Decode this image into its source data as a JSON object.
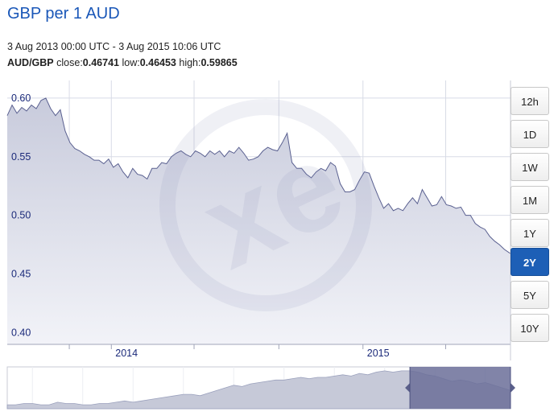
{
  "page": {
    "title": "GBP per 1 AUD",
    "date_range": "3 Aug 2013 00:00 UTC - 3 Aug 2015 10:06 UTC",
    "stats": {
      "pair": "AUD/GBP",
      "close_label": "close:",
      "close": "0.46741",
      "low_label": "low:",
      "low": "0.46453",
      "high_label": "high:",
      "high": "0.59865"
    }
  },
  "range_buttons": [
    {
      "label": "12h",
      "active": false
    },
    {
      "label": "1D",
      "active": false
    },
    {
      "label": "1W",
      "active": false
    },
    {
      "label": "1M",
      "active": false
    },
    {
      "label": "1Y",
      "active": false
    },
    {
      "label": "2Y",
      "active": true
    },
    {
      "label": "5Y",
      "active": false
    },
    {
      "label": "10Y",
      "active": false
    }
  ],
  "colors": {
    "line": "#5a6090",
    "fill_top": "#c8cbdc",
    "fill_bottom": "#f2f3f8",
    "tick_label": "#1b2a7a",
    "button_active": "#1d5fb6",
    "navigator_fill": "#c6c9d8",
    "navigator_selected": "#6b6f99"
  },
  "chart_data": {
    "type": "area",
    "title": "GBP per 1 AUD",
    "xlabel": "",
    "ylabel": "",
    "x_range": [
      "2013-08-03",
      "2015-08-03"
    ],
    "ylim": [
      0.39,
      0.615
    ],
    "y_ticks": [
      0.6,
      0.55,
      0.5,
      0.45,
      0.4
    ],
    "y_tick_labels": [
      "0.60",
      "0.55",
      "0.50",
      "0.45",
      "0.40"
    ],
    "x_tick_dates": [
      "2013-11-01",
      "2014-01-01",
      "2014-05-01",
      "2014-09-01",
      "2015-01-01",
      "2015-05-01"
    ],
    "x_tick_labels": [
      {
        "date": "2014-01-01",
        "label": "2014"
      },
      {
        "date": "2015-01-01",
        "label": "2015"
      }
    ],
    "grid": true,
    "series": [
      {
        "dates": [
          "2013-08-03",
          "2013-08-10",
          "2013-08-17",
          "2013-08-24",
          "2013-08-31",
          "2013-09-07",
          "2013-09-14",
          "2013-09-21",
          "2013-09-28",
          "2013-10-05",
          "2013-10-12",
          "2013-10-19",
          "2013-10-26",
          "2013-11-02",
          "2013-11-09",
          "2013-11-16",
          "2013-11-23",
          "2013-11-30",
          "2013-12-07",
          "2013-12-14",
          "2013-12-21",
          "2013-12-28",
          "2014-01-04",
          "2014-01-11",
          "2014-01-18",
          "2014-01-25",
          "2014-02-01",
          "2014-02-08",
          "2014-02-15",
          "2014-02-22",
          "2014-03-01",
          "2014-03-08",
          "2014-03-15",
          "2014-03-22",
          "2014-03-29",
          "2014-04-05",
          "2014-04-12",
          "2014-04-19",
          "2014-04-26",
          "2014-05-03",
          "2014-05-10",
          "2014-05-17",
          "2014-05-24",
          "2014-05-31",
          "2014-06-07",
          "2014-06-14",
          "2014-06-21",
          "2014-06-28",
          "2014-07-05",
          "2014-07-12",
          "2014-07-19",
          "2014-07-26",
          "2014-08-02",
          "2014-08-09",
          "2014-08-16",
          "2014-08-23",
          "2014-08-30",
          "2014-09-06",
          "2014-09-13",
          "2014-09-20",
          "2014-09-27",
          "2014-10-04",
          "2014-10-11",
          "2014-10-18",
          "2014-10-25",
          "2014-11-01",
          "2014-11-08",
          "2014-11-15",
          "2014-11-22",
          "2014-11-29",
          "2014-12-06",
          "2014-12-13",
          "2014-12-20",
          "2014-12-27",
          "2015-01-03",
          "2015-01-10",
          "2015-01-17",
          "2015-01-24",
          "2015-01-31",
          "2015-02-07",
          "2015-02-14",
          "2015-02-21",
          "2015-02-28",
          "2015-03-07",
          "2015-03-14",
          "2015-03-21",
          "2015-03-28",
          "2015-04-04",
          "2015-04-11",
          "2015-04-18",
          "2015-04-25",
          "2015-05-02",
          "2015-05-09",
          "2015-05-16",
          "2015-05-23",
          "2015-05-30",
          "2015-06-06",
          "2015-06-13",
          "2015-06-20",
          "2015-06-27",
          "2015-07-04",
          "2015-07-11",
          "2015-07-18",
          "2015-07-25",
          "2015-08-03"
        ],
        "values": [
          0.585,
          0.594,
          0.587,
          0.592,
          0.589,
          0.594,
          0.591,
          0.598,
          0.6,
          0.591,
          0.585,
          0.59,
          0.572,
          0.562,
          0.557,
          0.555,
          0.552,
          0.55,
          0.547,
          0.547,
          0.544,
          0.548,
          0.541,
          0.544,
          0.537,
          0.532,
          0.54,
          0.535,
          0.534,
          0.531,
          0.54,
          0.54,
          0.545,
          0.544,
          0.55,
          0.553,
          0.555,
          0.552,
          0.55,
          0.555,
          0.553,
          0.55,
          0.555,
          0.552,
          0.555,
          0.55,
          0.555,
          0.553,
          0.558,
          0.553,
          0.547,
          0.548,
          0.55,
          0.555,
          0.558,
          0.556,
          0.555,
          0.562,
          0.57,
          0.545,
          0.54,
          0.54,
          0.535,
          0.532,
          0.537,
          0.54,
          0.538,
          0.545,
          0.542,
          0.527,
          0.52,
          0.52,
          0.522,
          0.53,
          0.537,
          0.536,
          0.525,
          0.515,
          0.506,
          0.51,
          0.504,
          0.506,
          0.504,
          0.51,
          0.515,
          0.51,
          0.522,
          0.515,
          0.508,
          0.509,
          0.516,
          0.509,
          0.508,
          0.506,
          0.507,
          0.5,
          0.5,
          0.493,
          0.49,
          0.488,
          0.482,
          0.478,
          0.475,
          0.471,
          0.4674
        ]
      }
    ],
    "close": 0.46741,
    "low": 0.46453,
    "high": 0.59865,
    "navigator": {
      "x_range": [
        "2005-08-03",
        "2015-08-03"
      ],
      "selected_range": [
        "2013-08-03",
        "2015-08-03"
      ],
      "values": [
        0.37,
        0.37,
        0.38,
        0.38,
        0.37,
        0.37,
        0.39,
        0.38,
        0.38,
        0.37,
        0.37,
        0.38,
        0.38,
        0.39,
        0.4,
        0.39,
        0.4,
        0.41,
        0.42,
        0.43,
        0.44,
        0.45,
        0.45,
        0.44,
        0.46,
        0.48,
        0.5,
        0.52,
        0.51,
        0.53,
        0.54,
        0.55,
        0.56,
        0.56,
        0.57,
        0.58,
        0.57,
        0.58,
        0.58,
        0.59,
        0.6,
        0.59,
        0.61,
        0.6,
        0.62,
        0.63,
        0.62,
        0.63,
        0.63,
        0.62,
        0.6,
        0.59,
        0.57,
        0.55,
        0.56,
        0.55,
        0.53,
        0.54,
        0.52,
        0.5,
        0.48
      ]
    }
  }
}
